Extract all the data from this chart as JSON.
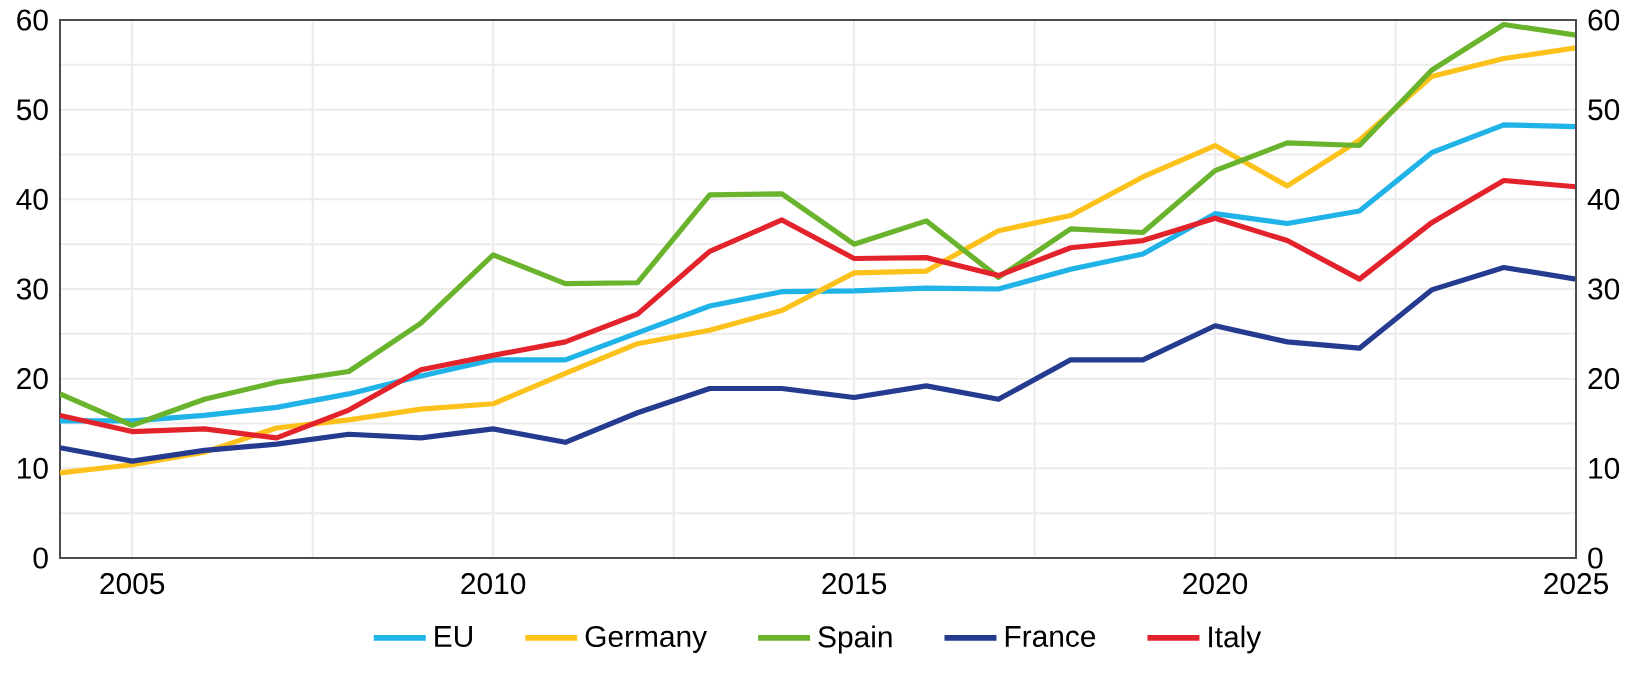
{
  "chart_data": {
    "type": "line",
    "x": [
      2004,
      2005,
      2006,
      2007,
      2008,
      2009,
      2010,
      2011,
      2012,
      2013,
      2014,
      2015,
      2016,
      2017,
      2018,
      2019,
      2020,
      2021,
      2022,
      2023,
      2024,
      2025
    ],
    "series": [
      {
        "name": "EU",
        "color": "#1fb3e8",
        "values": [
          15.3,
          15.3,
          15.9,
          16.8,
          18.3,
          20.3,
          22.1,
          22.1,
          25.1,
          28.1,
          29.7,
          29.8,
          30.1,
          30.0,
          32.2,
          33.9,
          38.4,
          37.3,
          38.7,
          45.2,
          48.3,
          48.1
        ]
      },
      {
        "name": "Germany",
        "color": "#fcc21b",
        "values": [
          9.5,
          10.4,
          11.8,
          14.5,
          15.4,
          16.6,
          17.2,
          20.6,
          23.9,
          25.4,
          27.6,
          31.8,
          32.0,
          36.5,
          38.2,
          42.5,
          46.0,
          41.5,
          46.6,
          53.7,
          55.7,
          56.9
        ]
      },
      {
        "name": "Spain",
        "color": "#6ab42d",
        "values": [
          18.3,
          14.8,
          17.7,
          19.6,
          20.8,
          26.2,
          33.8,
          30.6,
          30.7,
          40.5,
          40.6,
          35.0,
          37.6,
          31.3,
          36.7,
          36.3,
          43.2,
          46.3,
          46.0,
          54.4,
          59.5,
          58.3
        ]
      },
      {
        "name": "France",
        "color": "#253b8f",
        "values": [
          12.3,
          10.8,
          12.0,
          12.7,
          13.8,
          13.4,
          14.4,
          12.9,
          16.2,
          18.9,
          18.9,
          17.9,
          19.2,
          17.7,
          22.1,
          22.1,
          25.9,
          24.1,
          23.4,
          29.9,
          32.4,
          31.1
        ]
      },
      {
        "name": "Italy",
        "color": "#e3232b",
        "values": [
          15.9,
          14.1,
          14.4,
          13.4,
          16.5,
          21.0,
          22.6,
          24.1,
          27.2,
          34.2,
          37.7,
          33.4,
          33.5,
          31.5,
          34.6,
          35.4,
          37.9,
          35.4,
          31.1,
          37.4,
          42.1,
          41.4
        ]
      }
    ],
    "xlim": [
      2004,
      2025
    ],
    "xticks": [
      2005,
      {
        "value": 2007.5,
        "label": null
      },
      2010,
      {
        "value": 2012.5,
        "label": null
      },
      2015,
      {
        "value": 2017.5,
        "label": null
      },
      2020,
      {
        "value": 2022.5,
        "label": null
      },
      2025
    ],
    "ylim": [
      0,
      60
    ],
    "yticks": [
      0,
      {
        "value": 5,
        "label": null
      },
      10,
      {
        "value": 15,
        "label": null
      },
      20,
      {
        "value": 25,
        "label": null
      },
      30,
      {
        "value": 35,
        "label": null
      },
      40,
      {
        "value": 45,
        "label": null
      },
      50,
      {
        "value": 55,
        "label": null
      },
      60
    ],
    "y2lim": [
      0,
      60
    ],
    "y2ticks": [
      0,
      10,
      20,
      30,
      40,
      50,
      60
    ],
    "grid": true,
    "legend": "bottom",
    "marker": "none",
    "line_style": "solid"
  }
}
